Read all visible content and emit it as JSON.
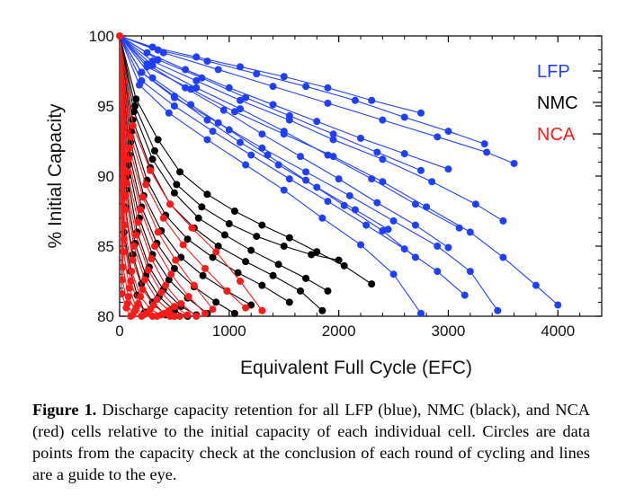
{
  "chart_data": {
    "type": "line",
    "xlabel": "Equivalent Full Cycle (EFC)",
    "ylabel": "% Initial Capacity",
    "xlim": [
      0,
      4400
    ],
    "ylim": [
      80,
      100
    ],
    "xticks": [
      "0",
      "1000",
      "2000",
      "3000",
      "4000"
    ],
    "yticks": [
      "80",
      "85",
      "90",
      "95",
      "100"
    ],
    "legend": {
      "position": "top-right",
      "entries": [
        {
          "label": "LFP",
          "color": "#1f3fff"
        },
        {
          "label": "NMC",
          "color": "#000000"
        },
        {
          "label": "NCA",
          "color": "#ff1a1a"
        }
      ]
    },
    "series": [
      {
        "name": "LFP",
        "color": "#1f3fff",
        "curves": [
          {
            "x": [
              0,
              300,
              700,
              1100,
              1500,
              1900,
              2300,
              2750
            ],
            "y": [
              100,
              99.2,
              98.5,
              97.8,
              97.1,
              96.3,
              95.4,
              94.5
            ]
          },
          {
            "x": [
              0,
              350,
              800,
              1250,
              1700,
              2150,
              2600,
              3000,
              3330
            ],
            "y": [
              100,
              99.0,
              98.2,
              97.3,
              96.4,
              95.4,
              94.2,
              93.2,
              92.3
            ]
          },
          {
            "x": [
              0,
              400,
              900,
              1400,
              1900,
              2400,
              2900,
              3350,
              3600
            ],
            "y": [
              100,
              98.8,
              97.6,
              96.4,
              95.2,
              94.0,
              92.8,
              91.7,
              90.9
            ]
          },
          {
            "x": [
              0,
              250,
              600,
              1000,
              1400,
              1800,
              2200,
              2600,
              3000
            ],
            "y": [
              100,
              98.8,
              97.6,
              96.3,
              95.1,
              93.9,
              92.7,
              91.6,
              90.5
            ]
          },
          {
            "x": [
              0,
              300,
              700,
              1100,
              1550,
              1950,
              2400,
              2850,
              3250,
              3500
            ],
            "y": [
              100,
              98.2,
              96.8,
              95.4,
              94.0,
              92.6,
              91.2,
              89.6,
              88.0,
              86.8
            ]
          },
          {
            "x": [
              0,
              250,
              650,
              1050,
              1500,
              1950,
              2400,
              2800,
              3200,
              3500,
              3800,
              4000
            ],
            "y": [
              100,
              97.8,
              96.2,
              94.6,
              93.0,
              91.4,
              89.6,
              87.8,
              86.0,
              84.2,
              82.2,
              80.8
            ]
          },
          {
            "x": [
              0,
              200,
              500,
              900,
              1300,
              1700,
              2100,
              2500,
              2900,
              3200,
              3450
            ],
            "y": [
              100,
              97.4,
              95.6,
              93.8,
              92.0,
              90.3,
              88.6,
              86.8,
              85.0,
              83.2,
              80.4
            ]
          },
          {
            "x": [
              0,
              200,
              500,
              850,
              1200,
              1550,
              1900,
              2250,
              2600,
              2900,
              3150
            ],
            "y": [
              100,
              96.8,
              95.0,
              93.2,
              91.5,
              89.8,
              88.2,
              86.5,
              84.8,
              83.2,
              81.5
            ]
          },
          {
            "x": [
              0,
              180,
              450,
              800,
              1150,
              1500,
              1850,
              2200,
              2500,
              2750
            ],
            "y": [
              100,
              96.5,
              94.5,
              92.6,
              90.8,
              89.0,
              87.0,
              85.1,
              83.0,
              80.2
            ]
          },
          {
            "x": [
              0,
              300,
              700,
              1100,
              1500,
              1900,
              2300,
              2700,
              3100
            ],
            "y": [
              100,
              97.9,
              96.3,
              94.8,
              93.2,
              91.5,
              89.8,
              88.0,
              86.3
            ]
          },
          {
            "x": [
              0,
              250,
              600,
              950,
              1300,
              1650,
              2000,
              2350,
              2700,
              3000
            ],
            "y": [
              100,
              98.0,
              96.3,
              94.7,
              93.0,
              91.4,
              89.8,
              88.1,
              86.5,
              84.9
            ]
          },
          {
            "x": [
              0,
              350,
              750,
              1150,
              1550,
              1950,
              2350,
              2750
            ],
            "y": [
              100,
              98.3,
              97.0,
              95.6,
              94.3,
              93.0,
              91.7,
              90.4
            ]
          },
          {
            "x": [
              0,
              200,
              500,
              800,
              1100,
              1450,
              1800,
              2150,
              2450
            ],
            "y": [
              100,
              97.4,
              95.7,
              94.0,
              92.4,
              90.8,
              89.2,
              87.6,
              86.2
            ]
          },
          {
            "x": [
              0,
              300,
              650,
              1000,
              1350,
              1700,
              2050,
              2400,
              2700
            ],
            "y": [
              100,
              97.0,
              95.1,
              93.3,
              91.5,
              89.7,
              87.9,
              86.1,
              84.2
            ]
          }
        ]
      },
      {
        "name": "NMC",
        "color": "#000000",
        "curves": [
          {
            "x": [
              0,
              150,
              350,
              550,
              800,
              1050,
              1300,
              1550,
              1800,
              2050,
              2300
            ],
            "y": [
              100,
              95.5,
              92.6,
              90.3,
              88.7,
              87.5,
              86.5,
              85.6,
              84.6,
              83.6,
              82.3
            ]
          },
          {
            "x": [
              0,
              140,
              320,
              520,
              750,
              1000,
              1250,
              1500,
              1750,
              2000
            ],
            "y": [
              100,
              95.0,
              91.8,
              89.4,
              87.8,
              86.6,
              85.7,
              85.0,
              84.4,
              84.0
            ]
          },
          {
            "x": [
              0,
              130,
              300,
              500,
              720,
              960,
              1200,
              1450,
              1700,
              1900
            ],
            "y": [
              100,
              94.6,
              91.2,
              88.8,
              87.0,
              85.8,
              84.7,
              83.7,
              82.7,
              81.8
            ]
          },
          {
            "x": [
              0,
              120,
              280,
              460,
              680,
              900,
              1150,
              1400,
              1650,
              1850
            ],
            "y": [
              100,
              94.0,
              90.6,
              88.0,
              86.3,
              85.0,
              83.9,
              82.9,
              81.8,
              80.4
            ]
          },
          {
            "x": [
              0,
              110,
              250,
              420,
              620,
              850,
              1080,
              1300,
              1550
            ],
            "y": [
              100,
              93.2,
              89.7,
              87.2,
              85.5,
              84.2,
              83.1,
              82.2,
              81.0
            ]
          },
          {
            "x": [
              0,
              100,
              220,
              380,
              560,
              760,
              980,
              1200
            ],
            "y": [
              100,
              92.4,
              88.6,
              86.1,
              84.2,
              82.9,
              81.8,
              80.8
            ]
          },
          {
            "x": [
              0,
              90,
              200,
              340,
              500,
              680,
              880,
              1050
            ],
            "y": [
              100,
              91.5,
              87.8,
              85.2,
              83.4,
              82.1,
              81.0,
              80.2
            ]
          },
          {
            "x": [
              0,
              80,
              180,
              300,
              450,
              620,
              800
            ],
            "y": [
              100,
              90.8,
              87.0,
              84.4,
              82.6,
              81.3,
              80.2
            ]
          },
          {
            "x": [
              0,
              70,
              160,
              270,
              400,
              560,
              700
            ],
            "y": [
              100,
              90.0,
              86.0,
              83.5,
              81.9,
              80.7,
              80.1
            ]
          },
          {
            "x": [
              0,
              60,
              140,
              240,
              360,
              500,
              620
            ],
            "y": [
              100,
              89.0,
              85.2,
              82.9,
              81.4,
              80.4,
              80.0
            ]
          },
          {
            "x": [
              0,
              50,
              120,
              200,
              300,
              420
            ],
            "y": [
              100,
              87.8,
              84.4,
              82.3,
              81.0,
              80.1
            ]
          },
          {
            "x": [
              0,
              40,
              100,
              160,
              230
            ],
            "y": [
              100,
              86.0,
              83.2,
              81.5,
              80.3
            ]
          }
        ]
      },
      {
        "name": "NCA",
        "color": "#ff1a1a",
        "curves": [
          {
            "x": [
              0,
              120,
              280,
              460,
              660,
              880,
              1100,
              1300
            ],
            "y": [
              100,
              93.6,
              90.4,
              88.0,
              86.3,
              84.6,
              82.5,
              80.4
            ]
          },
          {
            "x": [
              0,
              100,
              240,
              400,
              580,
              780,
              980,
              1150
            ],
            "y": [
              100,
              92.8,
              89.4,
              87.0,
              85.1,
              83.4,
              81.8,
              80.6
            ]
          },
          {
            "x": [
              0,
              90,
              210,
              350,
              510,
              680,
              850
            ],
            "y": [
              100,
              92.0,
              88.5,
              86.0,
              84.0,
              82.2,
              80.5
            ]
          },
          {
            "x": [
              0,
              80,
              190,
              320,
              470,
              630,
              780
            ],
            "y": [
              100,
              91.2,
              87.6,
              85.0,
              83.0,
              81.4,
              80.2
            ]
          },
          {
            "x": [
              0,
              70,
              170,
              290,
              420,
              560,
              700
            ],
            "y": [
              100,
              90.3,
              86.7,
              84.1,
              82.2,
              80.9,
              80.0
            ]
          },
          {
            "x": [
              0,
              60,
              150,
              260,
              380,
              500,
              620
            ],
            "y": [
              100,
              89.5,
              85.8,
              83.3,
              81.7,
              80.7,
              80.1
            ]
          },
          {
            "x": [
              0,
              55,
              130,
              230,
              340,
              450,
              550
            ],
            "y": [
              100,
              88.6,
              85.0,
              82.6,
              81.2,
              80.4,
              80.0
            ]
          },
          {
            "x": [
              0,
              50,
              120,
              210,
              310,
              410,
              500
            ],
            "y": [
              100,
              87.6,
              84.0,
              81.9,
              80.8,
              80.2,
              80.0
            ]
          },
          {
            "x": [
              0,
              45,
              110,
              190,
              280,
              380,
              460
            ],
            "y": [
              100,
              86.5,
              83.2,
              81.4,
              80.5,
              80.1,
              80.0
            ]
          },
          {
            "x": [
              0,
              40,
              100,
              170,
              250,
              340
            ],
            "y": [
              100,
              85.5,
              82.5,
              80.9,
              80.2,
              80.0
            ]
          },
          {
            "x": [
              0,
              35,
              90,
              150,
              220,
              300
            ],
            "y": [
              100,
              84.6,
              82.0,
              80.6,
              80.1,
              80.0
            ]
          },
          {
            "x": [
              0,
              30,
              80,
              140,
              200
            ],
            "y": [
              100,
              83.5,
              81.4,
              80.4,
              80.0
            ]
          },
          {
            "x": [
              0,
              25,
              70,
              120
            ],
            "y": [
              100,
              82.6,
              80.9,
              80.1
            ]
          },
          {
            "x": [
              0,
              20,
              60,
              100
            ],
            "y": [
              100,
              81.6,
              80.6,
              80.0
            ]
          }
        ]
      }
    ]
  },
  "caption": {
    "label": "Figure 1.",
    "text": "Discharge capacity retention for all LFP (blue), NMC (black), and NCA (red) cells relative to the initial capacity of each individual cell. Circles are data points from the capacity check at the conclusion of each round of cycling and lines are a guide to the eye."
  }
}
